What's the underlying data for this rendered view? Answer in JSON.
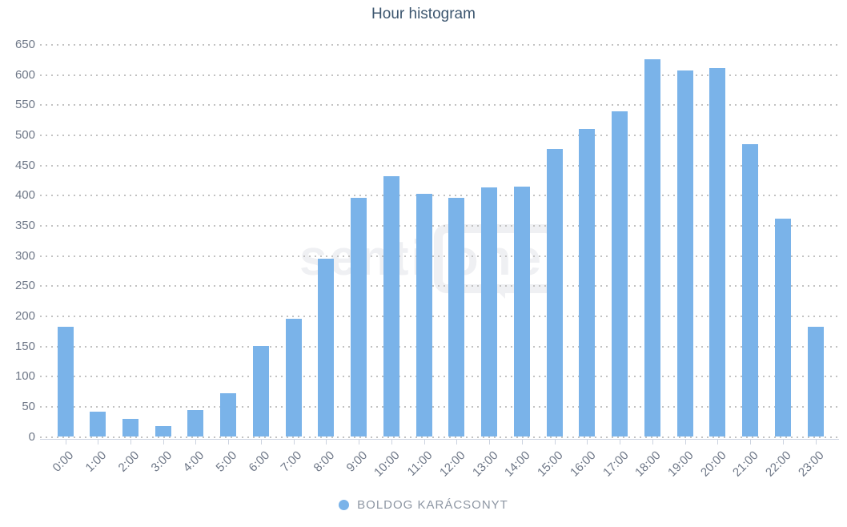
{
  "title": "Hour histogram",
  "watermark": {
    "part1": "senti",
    "part2": "one"
  },
  "legend": {
    "label": "BOLDOG KARÁCSONYT"
  },
  "colors": {
    "bar": "#7ab3e9",
    "title": "#3c566f",
    "axis_label": "#6e7787",
    "legend_text": "#8d96a3",
    "gridline": "#c2c2c2",
    "axis_line": "#ccd3e0",
    "tick": "#ccd3e0",
    "watermark": "#eff0f3"
  },
  "chart_data": {
    "type": "bar",
    "title": "Hour histogram",
    "categories": [
      "0:00",
      "1:00",
      "2:00",
      "3:00",
      "4:00",
      "5:00",
      "6:00",
      "7:00",
      "8:00",
      "9:00",
      "10:00",
      "11:00",
      "12:00",
      "13:00",
      "14:00",
      "15:00",
      "16:00",
      "17:00",
      "18:00",
      "19:00",
      "20:00",
      "21:00",
      "22:00",
      "23:00"
    ],
    "series": [
      {
        "name": "BOLDOG KARÁCSONYT",
        "color": "#7ab3e9",
        "values": [
          183,
          42,
          30,
          18,
          44,
          73,
          151,
          196,
          295,
          397,
          432,
          403,
          397,
          413,
          415,
          478,
          510,
          540,
          626,
          608,
          611,
          486,
          362,
          183
        ]
      }
    ],
    "xlabel": "",
    "ylabel": "",
    "ylim": [
      0,
      650
    ],
    "ytick_interval": 50,
    "grid": "horizontal-dotted",
    "legend_position": "bottom-center",
    "x_label_rotation": -45
  }
}
